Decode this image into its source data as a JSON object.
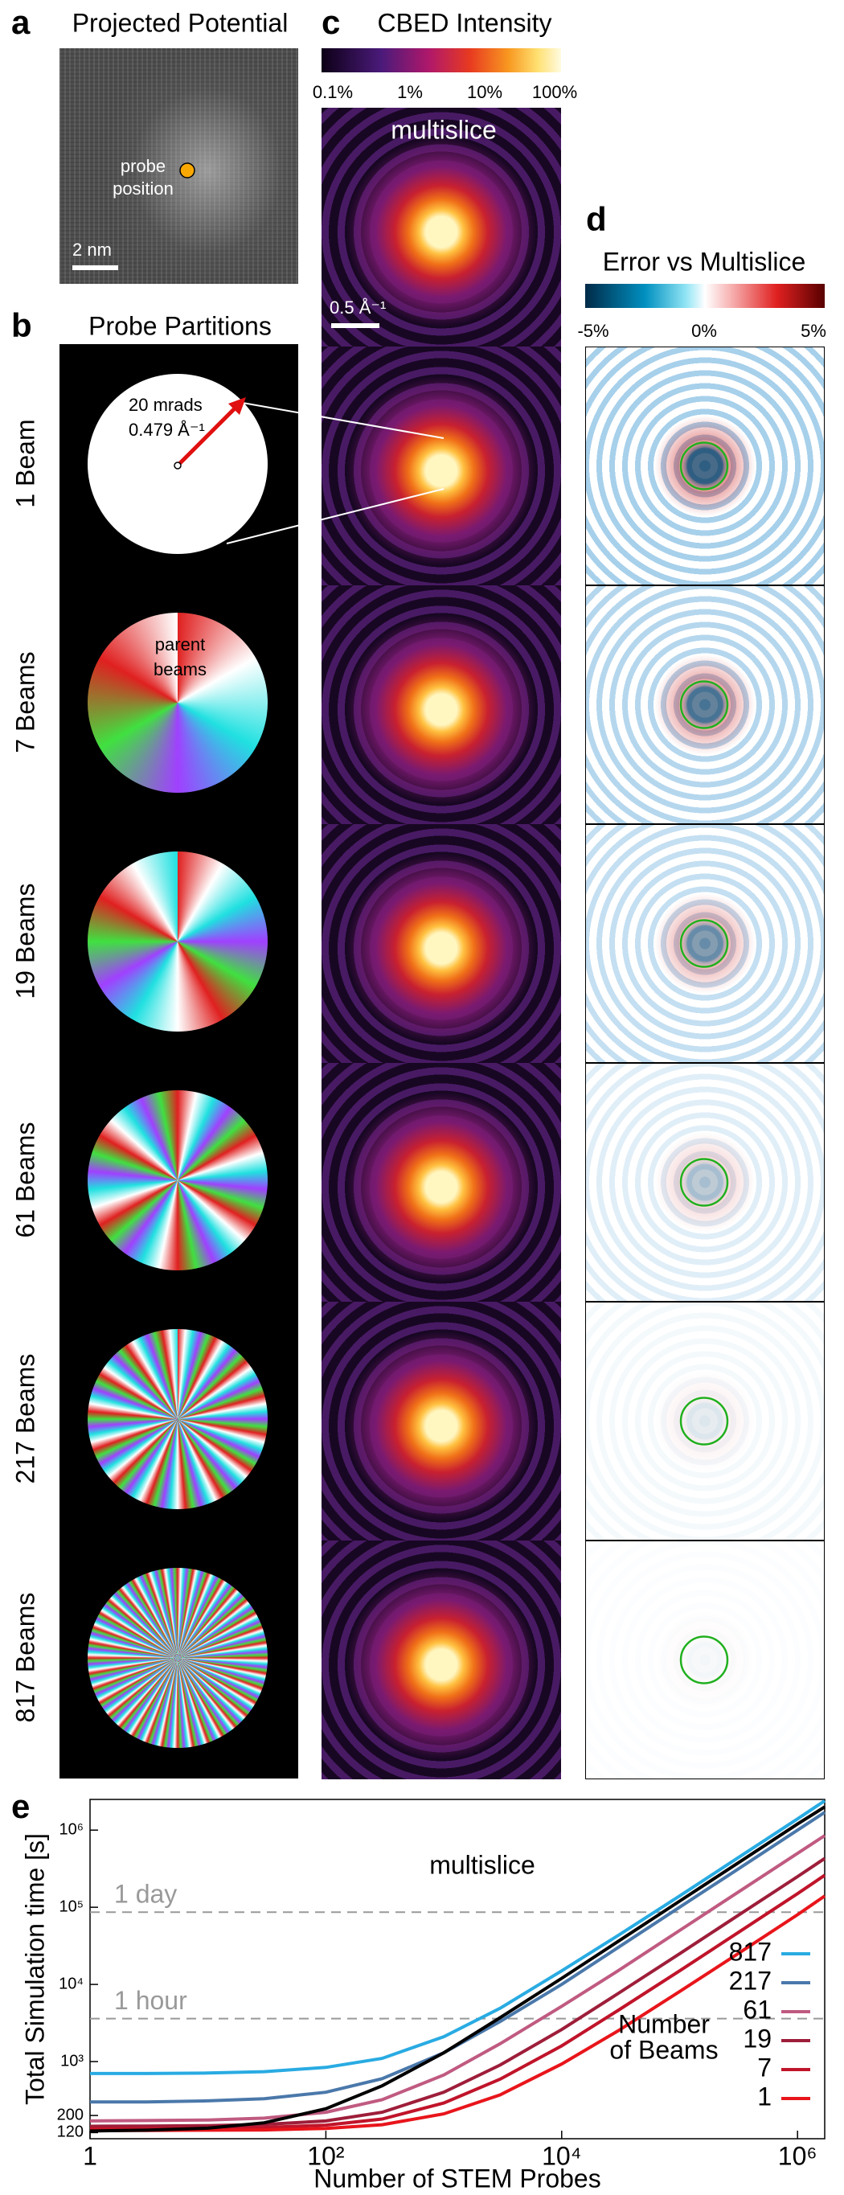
{
  "panels": {
    "a": {
      "label": "a",
      "title": "Projected Potential",
      "probe_text": [
        "probe",
        "position"
      ],
      "scale_bar": "2 nm"
    },
    "b": {
      "label": "b",
      "title": "Probe Partitions",
      "rows": [
        "1 Beam",
        "7 Beams",
        "19 Beams",
        "61 Beams",
        "217 Beams",
        "817 Beams"
      ],
      "annotation": [
        "20 mrads",
        "0.479 Å⁻¹"
      ],
      "parent_text": [
        "parent",
        "beams"
      ]
    },
    "c": {
      "label": "c",
      "title": "CBED Intensity",
      "colorbar_ticks": [
        "0.1%",
        "1%",
        "10%",
        "100%"
      ],
      "image_label": "multislice",
      "scale_bar": "0.5 Å⁻¹"
    },
    "d": {
      "label": "d",
      "title": "Error vs Multislice",
      "colorbar_ticks": [
        "-5%",
        "0%",
        "5%"
      ]
    },
    "e": {
      "label": "e"
    }
  },
  "chart_data": {
    "type": "line",
    "x_label": "Number of STEM Probes",
    "y_label": "Total Simulation time [s]",
    "log_x": true,
    "log_y": true,
    "x": [
      1,
      3,
      10,
      30,
      100,
      300,
      1000,
      3000,
      10000,
      30000,
      100000,
      300000,
      1000000,
      1700000
    ],
    "xlim": [
      1,
      1700000
    ],
    "xticks": [
      1,
      {
        "value": 100,
        "label": "10²"
      },
      {
        "value": 10000,
        "label": "10⁴"
      },
      {
        "value": 1000000,
        "label": "10⁶"
      }
    ],
    "ylim": [
      100,
      2500000
    ],
    "yticks": [
      {
        "value": 1000000,
        "label": "10⁶"
      },
      {
        "value": 100000,
        "label": "10⁵"
      },
      {
        "value": 10000,
        "label": "10⁴"
      },
      {
        "value": 1000,
        "label": "10³"
      },
      200,
      120
    ],
    "reference_lines": [
      {
        "label": "1 day",
        "value": 86400
      },
      {
        "label": "1 hour",
        "value": 3600
      }
    ],
    "multislice_label": "multislice",
    "legend_title": [
      "Number",
      "of Beams"
    ],
    "multislice": {
      "color": "#000000",
      "values": [
        126,
        129,
        137,
        161,
        245,
        485,
        1300,
        3700,
        12000,
        36000,
        120000,
        360000,
        1200000,
        2000000
      ]
    },
    "series": [
      {
        "name": "817",
        "color": "#29abe2",
        "values": [
          700,
          700,
          710,
          740,
          840,
          1100,
          2100,
          4900,
          15000,
          43000,
          140000,
          420000,
          1400000,
          2400000
        ]
      },
      {
        "name": "217",
        "color": "#4a78aa",
        "values": [
          300,
          300,
          310,
          330,
          400,
          600,
          1300,
          3300,
          10000,
          30000,
          100000,
          300000,
          1000000,
          1700000
        ]
      },
      {
        "name": "61",
        "color": "#c05a80",
        "values": [
          170,
          172,
          175,
          185,
          220,
          320,
          670,
          1700,
          5200,
          15000,
          50000,
          150000,
          500000,
          850000
        ]
      },
      {
        "name": "19",
        "color": "#9e1e3a",
        "values": [
          145,
          146,
          148,
          153,
          170,
          220,
          400,
          900,
          2600,
          7600,
          25000,
          75000,
          250000,
          430000
        ]
      },
      {
        "name": "7",
        "color": "#c0142a",
        "values": [
          135,
          135,
          137,
          140,
          150,
          180,
          290,
          590,
          1600,
          4600,
          15000,
          45000,
          150000,
          260000
        ]
      },
      {
        "name": "1",
        "color": "#e8151b",
        "values": [
          128,
          128,
          129,
          130,
          136,
          152,
          210,
          370,
          930,
          2500,
          8100,
          24000,
          80000,
          140000
        ]
      }
    ]
  }
}
